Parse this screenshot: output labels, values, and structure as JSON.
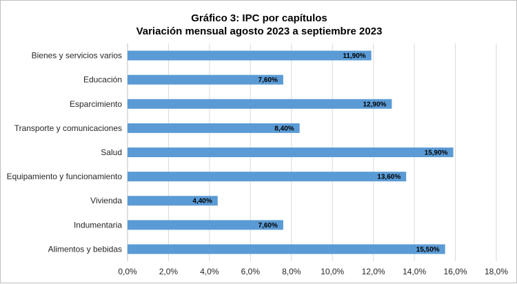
{
  "chart_data": {
    "type": "bar",
    "orientation": "horizontal",
    "title": "Gráfico 3: IPC por capítulos",
    "subtitle": "Variación mensual agosto 2023 a septiembre 2023",
    "categories": [
      "Bienes y servicios varios",
      "Educación",
      "Esparcimiento",
      "Transporte y comunicaciones",
      "Salud",
      "Equipamiento y funcionamiento",
      "Vivienda",
      "Indumentaria",
      "Alimentos y bebidas"
    ],
    "values": [
      11.9,
      7.6,
      12.9,
      8.4,
      15.9,
      13.6,
      4.4,
      7.6,
      15.5
    ],
    "data_labels": [
      "11,90%",
      "7,60%",
      "12,90%",
      "8,40%",
      "15,90%",
      "13,60%",
      "4,40%",
      "7,60%",
      "15,50%"
    ],
    "xlim": [
      0,
      18
    ],
    "x_ticks": [
      0,
      2,
      4,
      6,
      8,
      10,
      12,
      14,
      16,
      18
    ],
    "x_tick_labels": [
      "0,0%",
      "2,0%",
      "4,0%",
      "6,0%",
      "8,0%",
      "10,0%",
      "12,0%",
      "14,0%",
      "16,0%",
      "18,0%"
    ],
    "xlabel": "",
    "ylabel": "",
    "grid": "vertical",
    "legend": "none",
    "bar_color": "#5b9bd5",
    "grid_color": "#d9d9d9"
  }
}
